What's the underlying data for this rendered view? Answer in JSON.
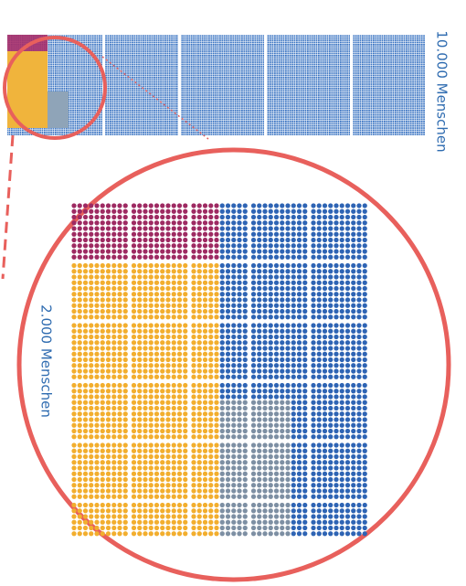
{
  "labels": {
    "large": "10.000 Menschen",
    "zoom": "2.000 Menschen"
  }
}
